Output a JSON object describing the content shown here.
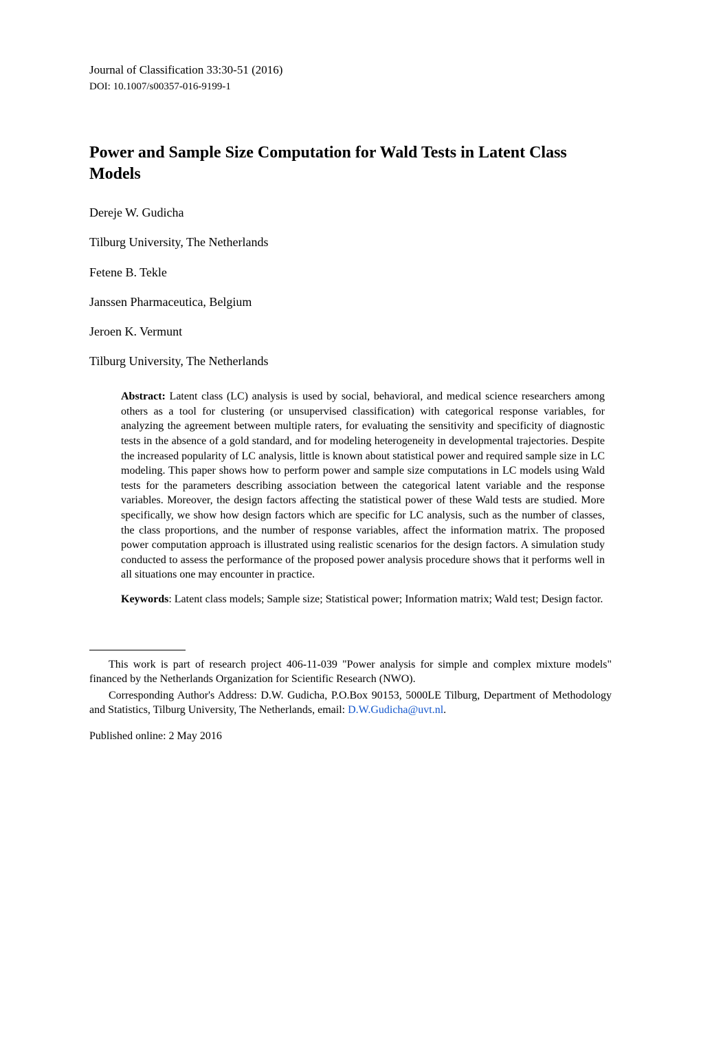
{
  "journal": {
    "name_and_pages": "Journal of Classification 33:30-51 (2016)",
    "doi": "DOI: 10.1007/s00357-016-9199-1"
  },
  "title": "Power and Sample Size Computation for Wald Tests in Latent Class Models",
  "authors": [
    {
      "name": "Dereje W. Gudicha",
      "affiliation": "Tilburg University, The Netherlands"
    },
    {
      "name": "Fetene B. Tekle",
      "affiliation": "Janssen Pharmaceutica, Belgium"
    },
    {
      "name": "Jeroen K. Vermunt",
      "affiliation": "Tilburg University, The Netherlands"
    }
  ],
  "abstract": {
    "label": "Abstract:",
    "text": " Latent class (LC) analysis is used by social, behavioral, and medical science researchers among others as a tool for clustering (or unsupervised classification) with categorical response variables, for analyzing the agreement between multiple raters, for evaluating the sensitivity and specificity of diagnostic tests in the absence of a gold standard, and for modeling heterogeneity in developmental trajectories. Despite the increased popularity of LC analysis, little is known about statistical power and required sample size in LC modeling. This paper shows how to perform power and sample size computations in LC models using Wald tests for the parameters describing association between the categorical latent variable and the response variables. Moreover, the design factors affecting the statistical power of these Wald tests are studied. More specifically, we show how design factors which are specific for LC analysis, such as the number of classes, the class proportions, and the number of response variables, affect the information matrix. The proposed power computation approach is illustrated using realistic scenarios for the design factors. A simulation study conducted to assess the performance of the proposed power analysis procedure shows that it performs well in all situations one may encounter in practice."
  },
  "keywords": {
    "label": "Keywords",
    "text": ": Latent class models; Sample size; Statistical power; Information matrix; Wald test; Design factor."
  },
  "footnotes": {
    "funding": "This work is part of research project 406-11-039 \"Power analysis for simple and complex mixture models\" financed by the Netherlands Organization for Scientific Research (NWO).",
    "corresponding_prefix": "Corresponding Author's Address: D.W. Gudicha, P.O.Box 90153, 5000LE Tilburg, Department of Methodology and Statistics, Tilburg University, The Netherlands, email: ",
    "corresponding_email": "D.W.Gudicha@uvt.nl",
    "corresponding_suffix": "."
  },
  "published": "Published online: 2 May 2016",
  "styling": {
    "background_color": "#ffffff",
    "text_color": "#000000",
    "link_color": "#1155cc",
    "title_fontsize": 24,
    "body_fontsize": 16,
    "journal_fontsize": 17,
    "doi_fontsize": 15,
    "author_fontsize": 18,
    "font_family": "Times New Roman"
  }
}
